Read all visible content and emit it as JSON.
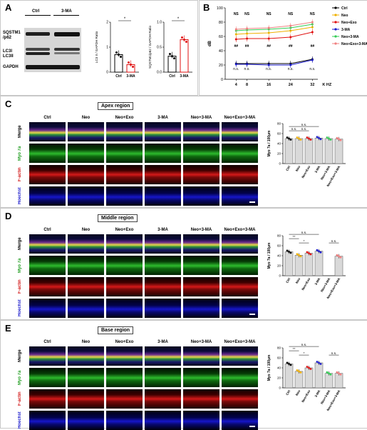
{
  "panels": {
    "A": {
      "label": "A",
      "blot_cols": [
        "Ctrl",
        "3-MA"
      ],
      "blot_rows": [
        "SQSTM1\n/p62",
        "LC3I\nLC3II",
        "GAPDH"
      ],
      "bar1": {
        "ylabel": "LC3 II / GAPDH Ratio",
        "categories": [
          "Ctrl",
          "3-MA"
        ],
        "ticks": [
          "0",
          "1",
          "2"
        ],
        "sig": "*"
      },
      "bar2": {
        "ylabel": "SQSTM1/p62 / GAPDH Ratio",
        "categories": [
          "Ctrl",
          "3-MA"
        ],
        "ticks": [
          "0.0",
          "0.5",
          "1.0"
        ],
        "sig": "*"
      }
    },
    "B": {
      "label": "B",
      "ylabel": "dB",
      "xlabel": "K HZ",
      "legend": [
        "Ctrl",
        "Neo",
        "Neo+Exo",
        "3-MA",
        "Neo+3-MA",
        "Neo+Exo+3-MA"
      ],
      "ns_label": "NS",
      "nsl_label": "n.s.",
      "hash_label": "##",
      "star_label": "*"
    },
    "C": {
      "label": "C",
      "region": "Apex region"
    },
    "D": {
      "label": "D",
      "region": "Middle region"
    },
    "E": {
      "label": "E",
      "region": "Base region"
    },
    "grid_cols": [
      "Ctrl",
      "Neo",
      "Neo+Exo",
      "3-MA",
      "Neo+3-MA",
      "Neo+Exo+3-MA"
    ],
    "grid_rows": [
      "Merge",
      "Myo 7a",
      "F-actin",
      "Hoechst"
    ],
    "quant_ylabel": "Myo 7a / 100µm",
    "quant_ticks": [
      "0",
      "20",
      "40",
      "60",
      "80"
    ],
    "sig_ns": "n.s.",
    "sig_double": "**",
    "sig_single": "*"
  },
  "colors": {
    "Ctrl": "#000000",
    "Neo": "#f0b000",
    "Neo+Exo": "#e01010",
    "3-MA": "#1a1acc",
    "Neo+3-MA": "#33cc55",
    "Neo+Exo+3-MA": "#f08080"
  },
  "chart_data": [
    {
      "type": "bar",
      "categories": [
        "Ctrl",
        "3-MA"
      ],
      "values": [
        0.7,
        0.3
      ],
      "ylim": [
        0,
        2
      ],
      "ylabel": "LC3 II / GAPDH Ratio"
    },
    {
      "type": "bar",
      "categories": [
        "Ctrl",
        "3-MA"
      ],
      "values": [
        0.32,
        0.65
      ],
      "ylim": [
        0,
        1.0
      ],
      "ylabel": "SQSTM1/p62 / GAPDH Ratio"
    },
    {
      "type": "line",
      "x": [
        4,
        8,
        16,
        24,
        32
      ],
      "xlabel": "K HZ",
      "ylabel": "dB",
      "ylim": [
        0,
        100
      ],
      "series": [
        {
          "name": "Ctrl",
          "values": [
            22,
            22,
            22,
            22,
            28
          ]
        },
        {
          "name": "Neo",
          "values": [
            63,
            64,
            65,
            68,
            73
          ]
        },
        {
          "name": "Neo+Exo",
          "values": [
            56,
            57,
            57,
            59,
            66
          ]
        },
        {
          "name": "3-MA",
          "values": [
            21,
            21,
            20,
            20,
            27
          ]
        },
        {
          "name": "Neo+3-MA",
          "values": [
            68,
            69,
            70,
            72,
            77
          ]
        },
        {
          "name": "Neo+Exo+3-MA",
          "values": [
            70,
            71,
            72,
            75,
            80
          ]
        }
      ]
    },
    {
      "type": "bar",
      "categories": [
        "Ctrl",
        "Neo",
        "Neo+Exo",
        "3-MA",
        "Neo+3-MA",
        "Neo+Exo+3-MA"
      ],
      "values": [
        50,
        50,
        50,
        51,
        50,
        49
      ],
      "ylim": [
        0,
        80
      ],
      "ylabel": "Myo 7a / 100µm"
    },
    {
      "type": "bar",
      "categories": [
        "Ctrl",
        "Neo",
        "Neo+Exo",
        "3-MA",
        "Neo+3-MA",
        "Neo+Exo+3-MA"
      ],
      "values": [
        48,
        41,
        45,
        49,
        0,
        39
      ],
      "ylim": [
        0,
        80
      ],
      "ylabel": "Myo 7a / 100µm"
    },
    {
      "type": "bar",
      "categories": [
        "Ctrl",
        "Neo",
        "Neo+Exo",
        "3-MA",
        "Neo+3-MA",
        "Neo+Exo+3-MA"
      ],
      "values": [
        48,
        33,
        40,
        50,
        29,
        29
      ],
      "ylim": [
        0,
        80
      ],
      "ylabel": "Myo 7a / 100µm"
    }
  ]
}
